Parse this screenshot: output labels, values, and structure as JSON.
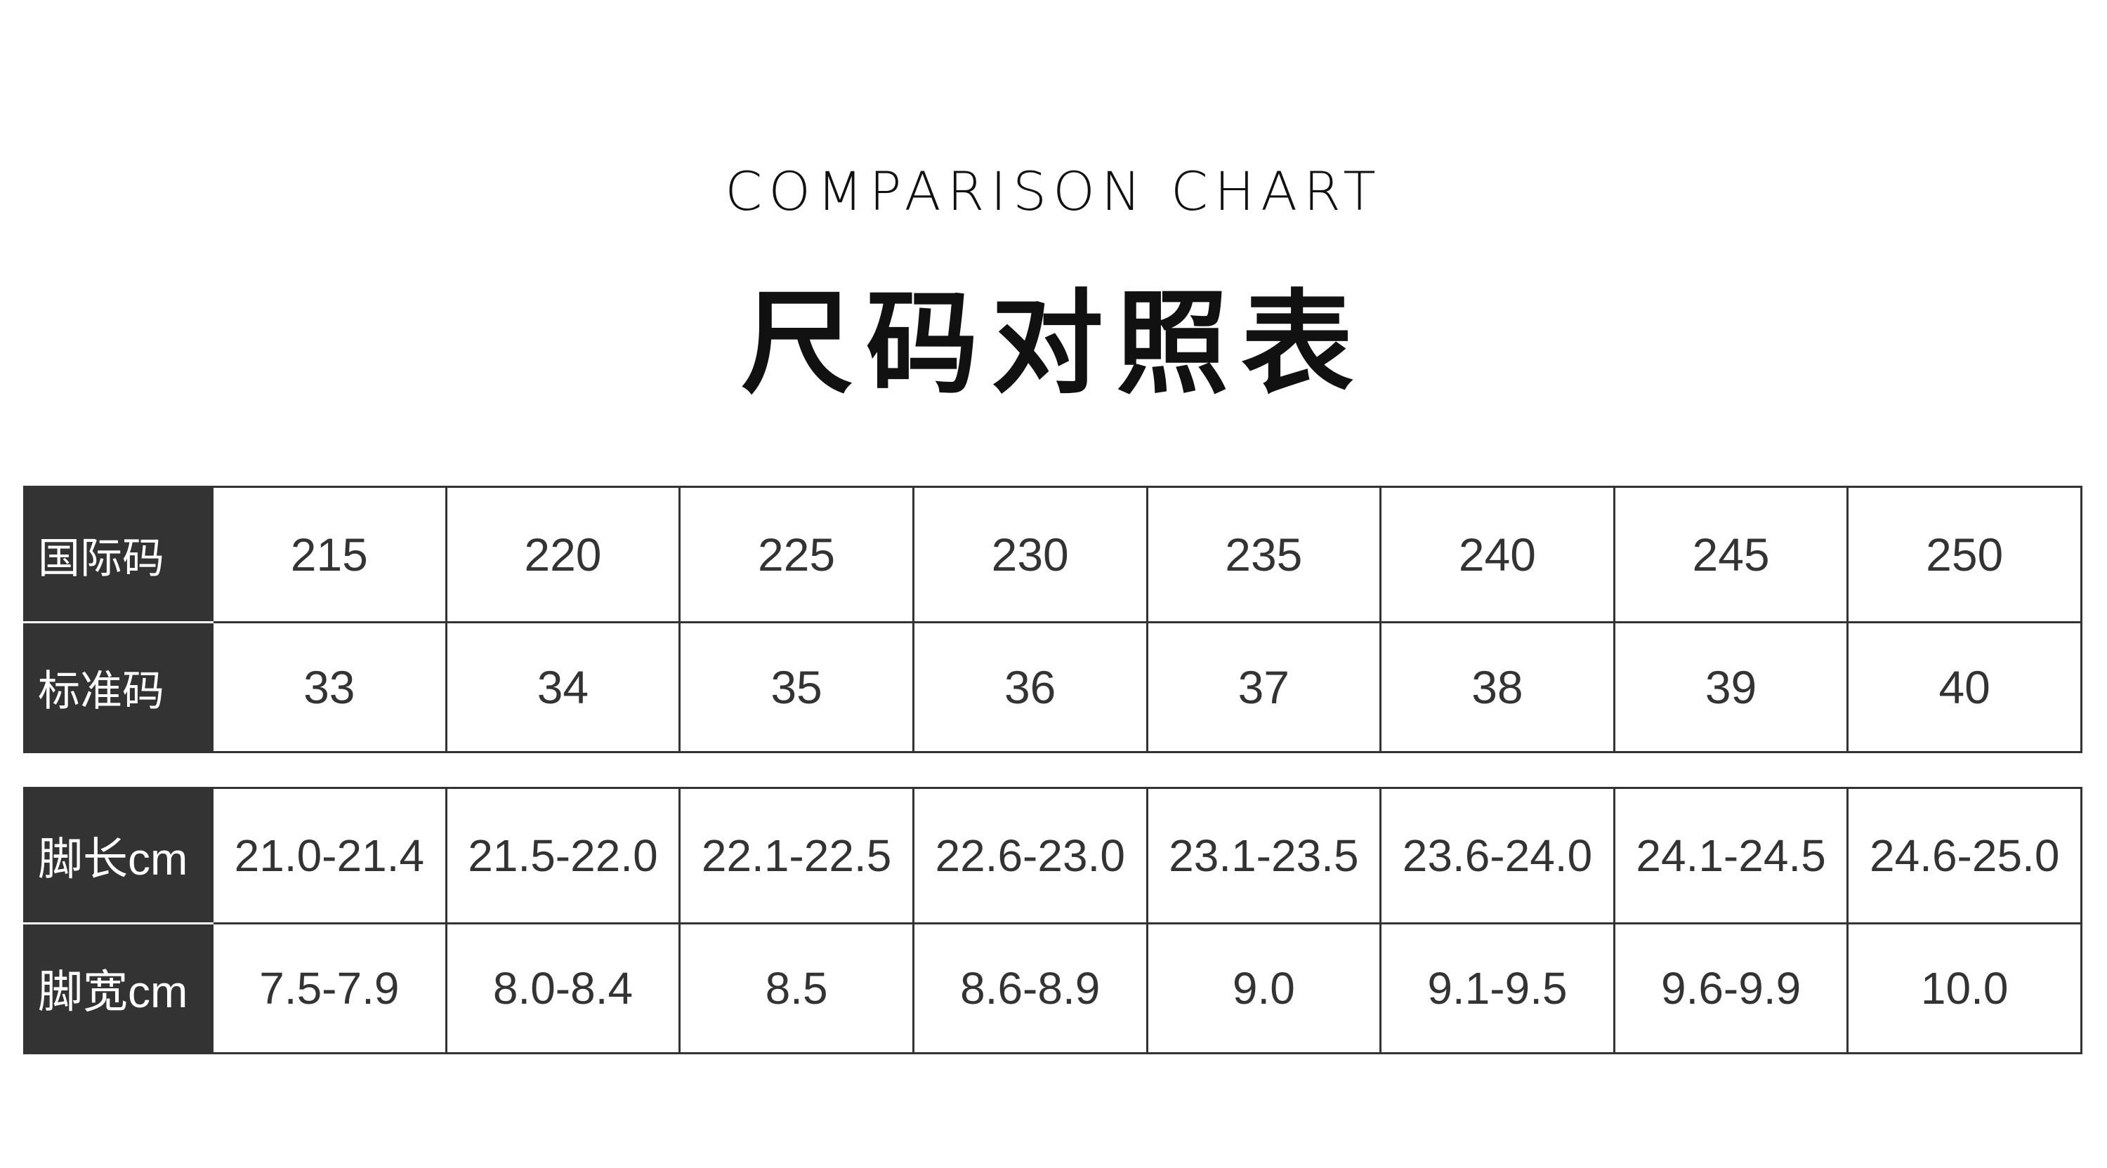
{
  "header": {
    "subtitle": "COMPARISON CHART",
    "title": "尺码对照表"
  },
  "table1": {
    "rows": [
      {
        "label": "国际码",
        "values": [
          "215",
          "220",
          "225",
          "230",
          "235",
          "240",
          "245",
          "250"
        ]
      },
      {
        "label": "标准码",
        "values": [
          "33",
          "34",
          "35",
          "36",
          "37",
          "38",
          "39",
          "40"
        ]
      }
    ]
  },
  "table2": {
    "rows": [
      {
        "label": "脚长cm",
        "values": [
          "21.0-21.4",
          "21.5-22.0",
          "22.1-22.5",
          "22.6-23.0",
          "23.1-23.5",
          "23.6-24.0",
          "24.1-24.5",
          "24.6-25.0"
        ]
      },
      {
        "label": "脚宽cm",
        "values": [
          "7.5-7.9",
          "8.0-8.4",
          "8.5",
          "8.6-8.9",
          "9.0",
          "9.1-9.5",
          "9.6-9.9",
          "10.0"
        ]
      }
    ]
  },
  "colors": {
    "header_bg": "#333333",
    "text": "#333333",
    "border": "#333333"
  }
}
